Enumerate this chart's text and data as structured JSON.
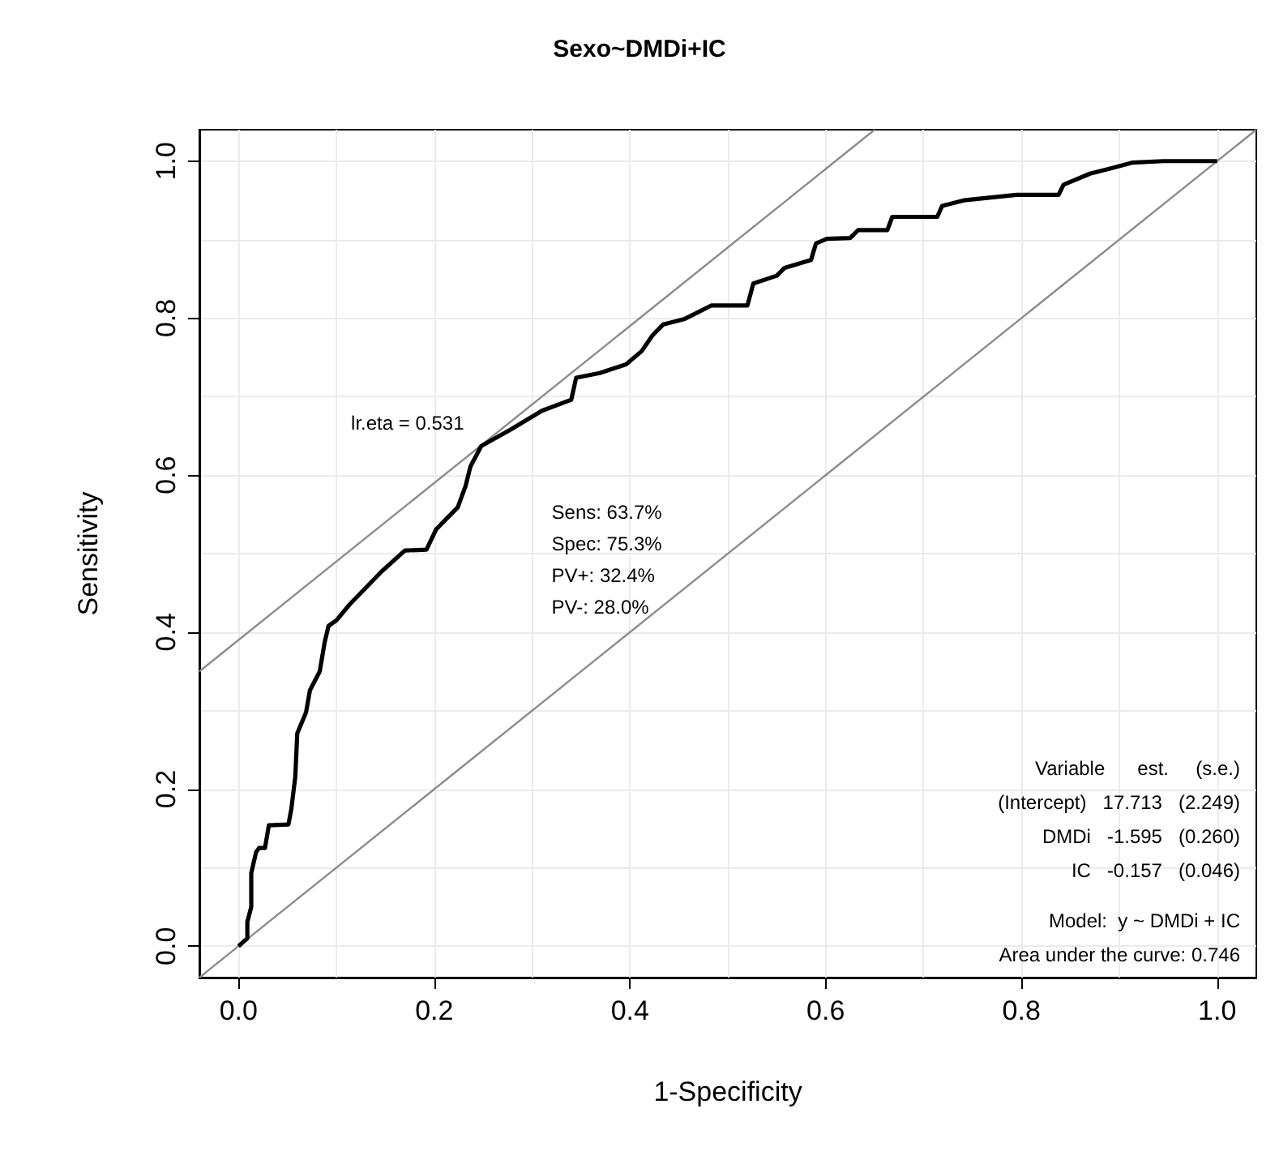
{
  "chart_data": {
    "type": "line",
    "title": "Sexo~DMDi+IC",
    "xlabel": "1-Specificity",
    "ylabel": "Sensitivity",
    "xlim": [
      -0.04,
      1.04
    ],
    "ylim": [
      -0.04,
      1.04
    ],
    "xticks": [
      {
        "value": 0,
        "label": "0.0"
      },
      0.2,
      0.4,
      0.6,
      0.8,
      {
        "value": 1,
        "label": "1.0"
      }
    ],
    "yticks": [
      {
        "value": 0,
        "label": "0.0"
      },
      0.2,
      0.4,
      0.6,
      0.8,
      {
        "value": 1,
        "label": "1.0"
      }
    ],
    "grid": true,
    "marker": "none",
    "line_style": "solid",
    "series": [
      {
        "color": "#000000",
        "x": [
          0,
          0.009,
          0.009,
          0.013,
          0.013,
          0.018,
          0.021,
          0.027,
          0.031,
          0.051,
          0.054,
          0.058,
          0.06,
          0.069,
          0.073,
          0.083,
          0.088,
          0.092,
          0.1,
          0.114,
          0.132,
          0.146,
          0.17,
          0.192,
          0.202,
          0.213,
          0.224,
          0.232,
          0.237,
          0.248,
          0.278,
          0.31,
          0.34,
          0.345,
          0.369,
          0.396,
          0.412,
          0.423,
          0.434,
          0.456,
          0.483,
          0.52,
          0.526,
          0.55,
          0.558,
          0.585,
          0.59,
          0.601,
          0.625,
          0.633,
          0.663,
          0.668,
          0.714,
          0.719,
          0.741,
          0.795,
          0.838,
          0.843,
          0.87,
          0.892,
          0.913,
          0.945,
          1.0
        ],
        "values": [
          0,
          0.01,
          0.031,
          0.05,
          0.093,
          0.12,
          0.125,
          0.125,
          0.154,
          0.155,
          0.175,
          0.216,
          0.271,
          0.298,
          0.326,
          0.35,
          0.387,
          0.408,
          0.415,
          0.436,
          0.459,
          0.477,
          0.504,
          0.505,
          0.531,
          0.545,
          0.559,
          0.586,
          0.611,
          0.637,
          0.658,
          0.682,
          0.696,
          0.724,
          0.73,
          0.741,
          0.758,
          0.778,
          0.792,
          0.799,
          0.816,
          0.816,
          0.844,
          0.854,
          0.864,
          0.874,
          0.895,
          0.901,
          0.902,
          0.912,
          0.912,
          0.929,
          0.929,
          0.943,
          0.95,
          0.957,
          0.957,
          0.97,
          0.984,
          0.991,
          0.998,
          1.0,
          1.0
        ]
      },
      {
        "color": "#8c8c8c",
        "x": [
          -0.04,
          1.04
        ],
        "values": [
          -0.04,
          1.04
        ]
      },
      {
        "color": "#8c8c8c",
        "x": [
          -0.04,
          0.65
        ],
        "values": [
          0.35,
          1.04
        ]
      }
    ],
    "annotations": [
      {
        "text": "lr.eta = 0.531",
        "x": 0.247,
        "y": 0.637
      },
      "Sens: 63.7%",
      "Spec: 75.3%",
      "PV+: 32.4%",
      "PV-: 28.0%",
      "Variable      est.     (s.e.)",
      "(Intercept)   17.713   (2.249)",
      "DMDi   -1.595   (0.260)",
      "IC   -0.157   (0.046)",
      "Model:  y ~ DMDi + IC",
      "Area under the curve: 0.746"
    ]
  }
}
